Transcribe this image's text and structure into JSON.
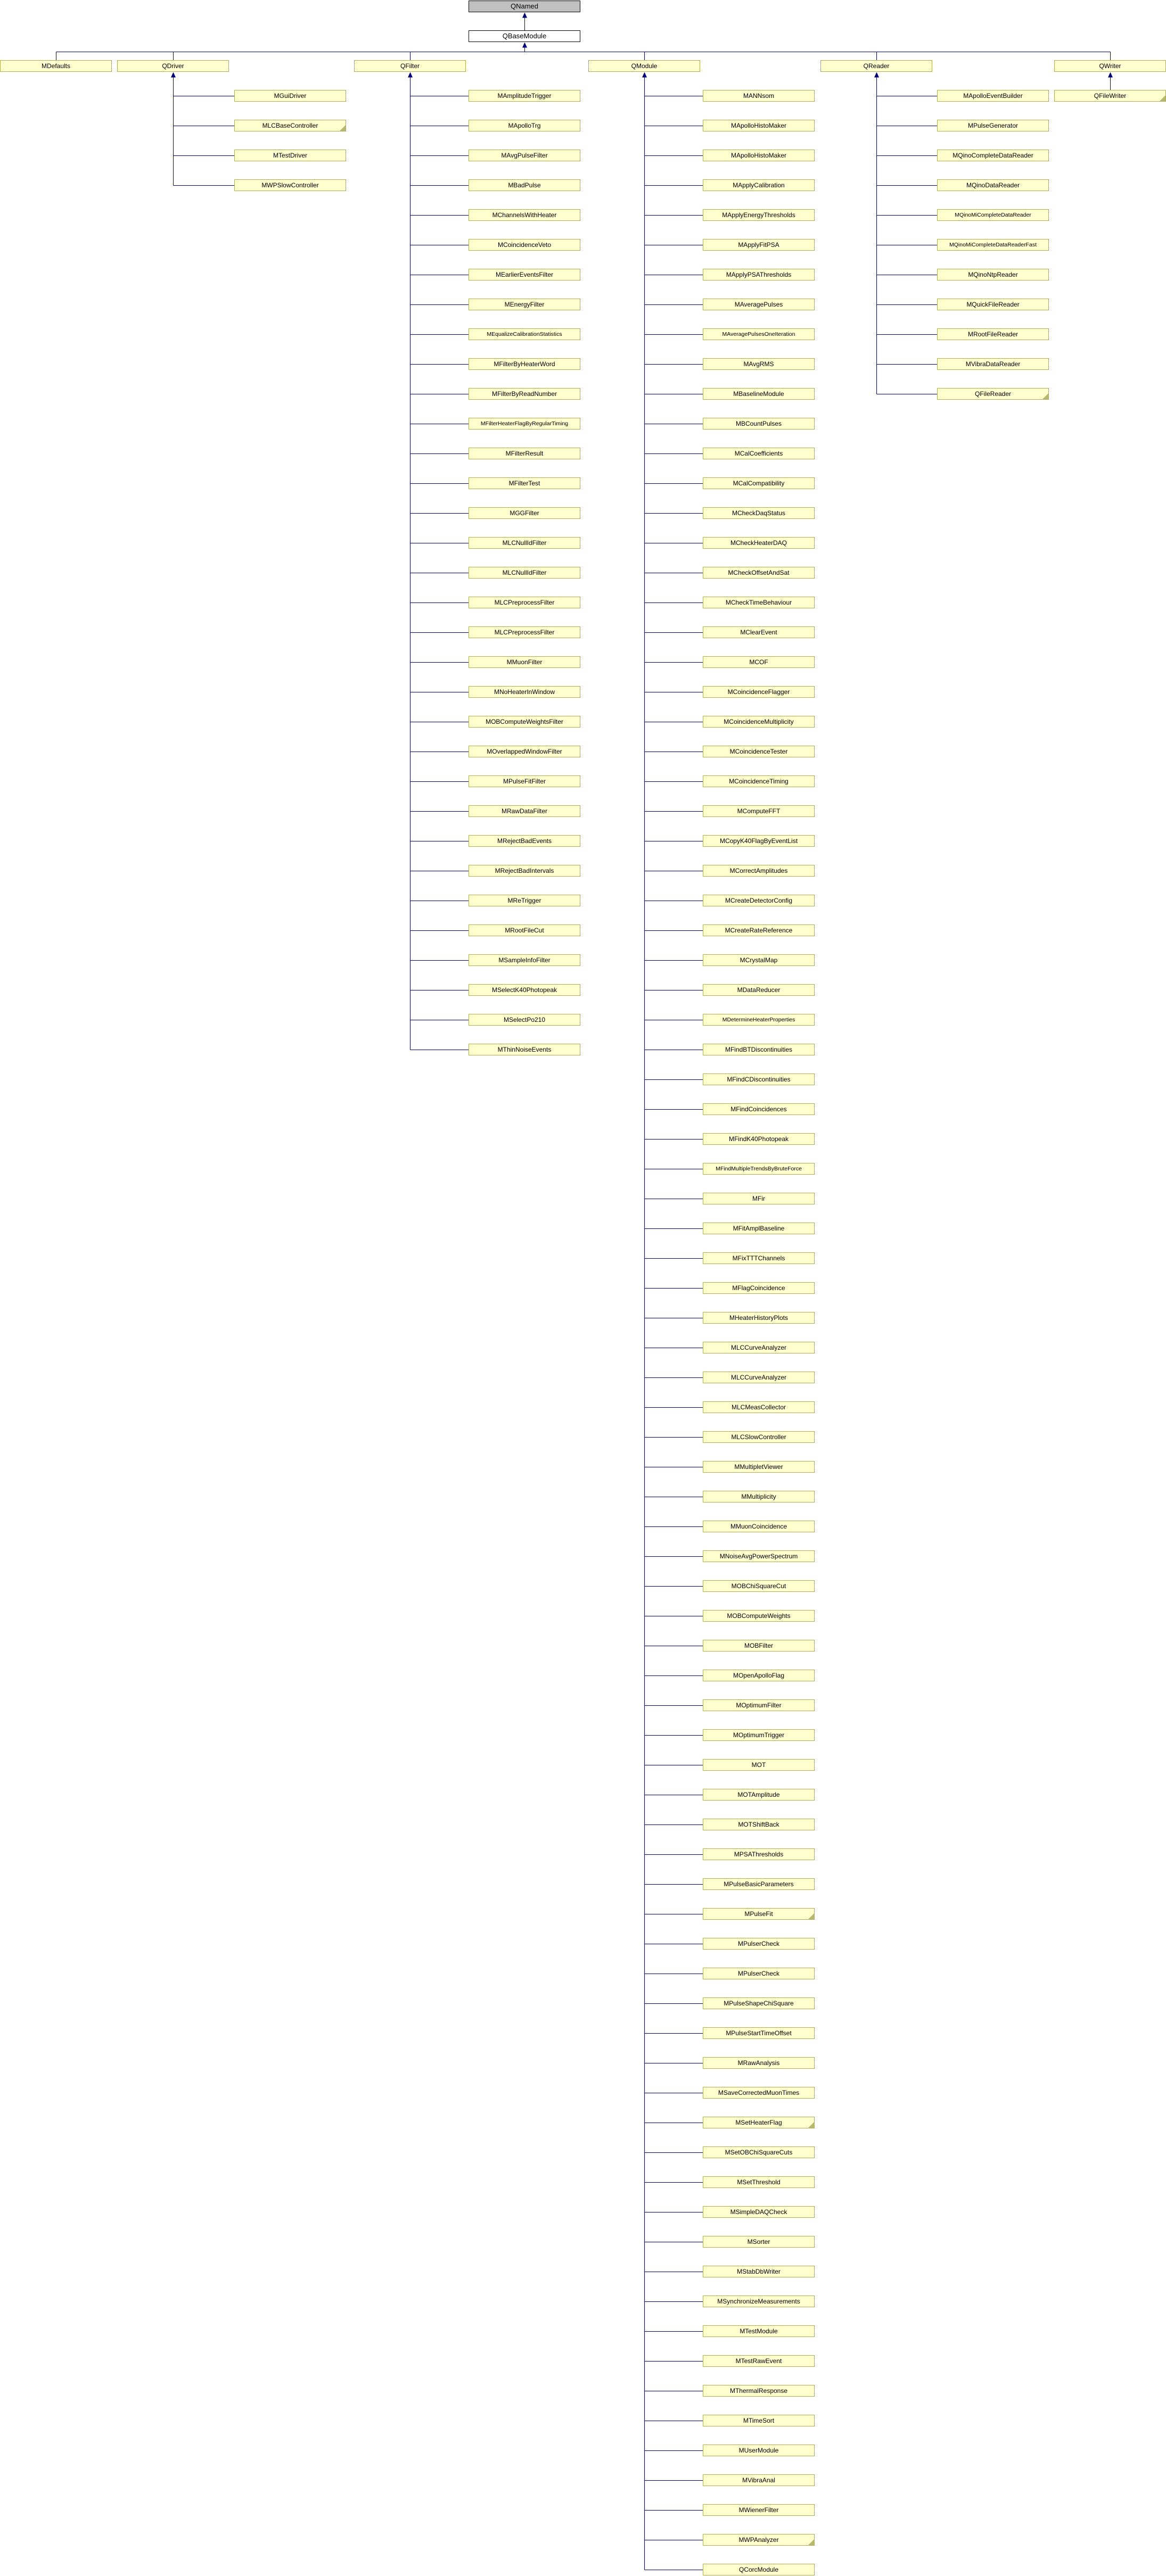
{
  "diagram": {
    "root_label": "QNamed",
    "base_label": "QBaseModule",
    "colors": {
      "background": "#FFFFFF",
      "node_fill": "#FFFFCE",
      "node_border": "#B0B052",
      "fold_corner": "#B9B96E",
      "root_fill": "#C0C0C0",
      "root_border": "#000000",
      "base_fill": "#FFFFFF",
      "edge": "#000080",
      "text": "#000000"
    },
    "columns": [
      {
        "label": "MDefaults",
        "children": []
      },
      {
        "label": "QDriver",
        "children": [
          {
            "label": "MGuiDriver",
            "folded": false
          },
          {
            "label": "MLCBaseController",
            "folded": true
          },
          {
            "label": "MTestDriver",
            "folded": false
          },
          {
            "label": "MWPSlowController",
            "folded": false
          }
        ]
      },
      {
        "label": "QFilter",
        "children": [
          {
            "label": "MAmplitudeTrigger",
            "folded": false
          },
          {
            "label": "MApolloTrg",
            "folded": false
          },
          {
            "label": "MAvgPulseFilter",
            "folded": false
          },
          {
            "label": "MBadPulse",
            "folded": false
          },
          {
            "label": "MChannelsWithHeater",
            "folded": false
          },
          {
            "label": "MCoincidenceVeto",
            "folded": false
          },
          {
            "label": "MEarlierEventsFilter",
            "folded": false
          },
          {
            "label": "MEnergyFilter",
            "folded": false
          },
          {
            "label": "MEqualizeCalibrationStatistics",
            "folded": false
          },
          {
            "label": "MFilterByHeaterWord",
            "folded": false
          },
          {
            "label": "MFilterByReadNumber",
            "folded": false
          },
          {
            "label": "MFilterHeaterFlagByRegularTiming",
            "folded": false
          },
          {
            "label": "MFilterResult",
            "folded": false
          },
          {
            "label": "MFilterTest",
            "folded": false
          },
          {
            "label": "MGGFilter",
            "folded": false
          },
          {
            "label": "MLCNullIdFilter",
            "folded": false
          },
          {
            "label": "MLCNullIdFilter",
            "folded": false
          },
          {
            "label": "MLCPreprocessFilter",
            "folded": false
          },
          {
            "label": "MLCPreprocessFilter",
            "folded": false
          },
          {
            "label": "MMuonFilter",
            "folded": false
          },
          {
            "label": "MNoHeaterInWindow",
            "folded": false
          },
          {
            "label": "MOBComputeWeightsFilter",
            "folded": false
          },
          {
            "label": "MOverlappedWindowFilter",
            "folded": false
          },
          {
            "label": "MPulseFitFilter",
            "folded": false
          },
          {
            "label": "MRawDataFilter",
            "folded": false
          },
          {
            "label": "MRejectBadEvents",
            "folded": false
          },
          {
            "label": "MRejectBadIntervals",
            "folded": false
          },
          {
            "label": "MReTrigger",
            "folded": false
          },
          {
            "label": "MRootFileCut",
            "folded": false
          },
          {
            "label": "MSampleInfoFilter",
            "folded": false
          },
          {
            "label": "MSelectK40Photopeak",
            "folded": false
          },
          {
            "label": "MSelectPo210",
            "folded": false
          },
          {
            "label": "MThinNoiseEvents",
            "folded": false
          }
        ]
      },
      {
        "label": "QModule",
        "children": [
          {
            "label": "MANNsom",
            "folded": false
          },
          {
            "label": "MApolloHistoMaker",
            "folded": false
          },
          {
            "label": "MApolloHistoMaker",
            "folded": false
          },
          {
            "label": "MApplyCalibration",
            "folded": false
          },
          {
            "label": "MApplyEnergyThresholds",
            "folded": false
          },
          {
            "label": "MApplyFitPSA",
            "folded": false
          },
          {
            "label": "MApplyPSAThresholds",
            "folded": false
          },
          {
            "label": "MAveragePulses",
            "folded": false
          },
          {
            "label": "MAveragePulsesOneIteration",
            "folded": false
          },
          {
            "label": "MAvgRMS",
            "folded": false
          },
          {
            "label": "MBaselineModule",
            "folded": false
          },
          {
            "label": "MBCountPulses",
            "folded": false
          },
          {
            "label": "MCalCoefficients",
            "folded": false
          },
          {
            "label": "MCalCompatibility",
            "folded": false
          },
          {
            "label": "MCheckDaqStatus",
            "folded": false
          },
          {
            "label": "MCheckHeaterDAQ",
            "folded": false
          },
          {
            "label": "MCheckOffsetAndSat",
            "folded": false
          },
          {
            "label": "MCheckTimeBehaviour",
            "folded": false
          },
          {
            "label": "MClearEvent",
            "folded": false
          },
          {
            "label": "MCOF",
            "folded": false
          },
          {
            "label": "MCoincidenceFlagger",
            "folded": false
          },
          {
            "label": "MCoincidenceMultiplicity",
            "folded": false
          },
          {
            "label": "MCoincidenceTester",
            "folded": false
          },
          {
            "label": "MCoincidenceTiming",
            "folded": false
          },
          {
            "label": "MComputeFFT",
            "folded": false
          },
          {
            "label": "MCopyK40FlagByEventList",
            "folded": false
          },
          {
            "label": "MCorrectAmplitudes",
            "folded": false
          },
          {
            "label": "MCreateDetectorConfig",
            "folded": false
          },
          {
            "label": "MCreateRateReference",
            "folded": false
          },
          {
            "label": "MCrystalMap",
            "folded": false
          },
          {
            "label": "MDataReducer",
            "folded": false
          },
          {
            "label": "MDetermineHeaterProperties",
            "folded": false
          },
          {
            "label": "MFindBTDiscontinuities",
            "folded": false
          },
          {
            "label": "MFindCDiscontinuities",
            "folded": false
          },
          {
            "label": "MFindCoincidences",
            "folded": false
          },
          {
            "label": "MFindK40Photopeak",
            "folded": false
          },
          {
            "label": "MFindMultipleTrendsByBruteForce",
            "folded": false
          },
          {
            "label": "MFir",
            "folded": false
          },
          {
            "label": "MFitAmplBaseline",
            "folded": false
          },
          {
            "label": "MFixTTTChannels",
            "folded": false
          },
          {
            "label": "MFlagCoincidence",
            "folded": false
          },
          {
            "label": "MHeaterHistoryPlots",
            "folded": false
          },
          {
            "label": "MLCCurveAnalyzer",
            "folded": false
          },
          {
            "label": "MLCCurveAnalyzer",
            "folded": false
          },
          {
            "label": "MLCMeasCollector",
            "folded": false
          },
          {
            "label": "MLCSlowController",
            "folded": false
          },
          {
            "label": "MMultipletViewer",
            "folded": false
          },
          {
            "label": "MMultiplicity",
            "folded": false
          },
          {
            "label": "MMuonCoincidence",
            "folded": false
          },
          {
            "label": "MNoiseAvgPowerSpectrum",
            "folded": false
          },
          {
            "label": "MOBChiSquareCut",
            "folded": false
          },
          {
            "label": "MOBComputeWeights",
            "folded": false
          },
          {
            "label": "MOBFilter",
            "folded": false
          },
          {
            "label": "MOpenApolloFlag",
            "folded": false
          },
          {
            "label": "MOptimumFilter",
            "folded": false
          },
          {
            "label": "MOptimumTrigger",
            "folded": false
          },
          {
            "label": "MOT",
            "folded": false
          },
          {
            "label": "MOTAmplitude",
            "folded": false
          },
          {
            "label": "MOTShiftBack",
            "folded": false
          },
          {
            "label": "MPSAThresholds",
            "folded": false
          },
          {
            "label": "MPulseBasicParameters",
            "folded": false
          },
          {
            "label": "MPulseFit",
            "folded": true
          },
          {
            "label": "MPulserCheck",
            "folded": false
          },
          {
            "label": "MPulserCheck",
            "folded": false
          },
          {
            "label": "MPulseShapeChiSquare",
            "folded": false
          },
          {
            "label": "MPulseStartTimeOffset",
            "folded": false
          },
          {
            "label": "MRawAnalysis",
            "folded": false
          },
          {
            "label": "MSaveCorrectedMuonTimes",
            "folded": false
          },
          {
            "label": "MSetHeaterFlag",
            "folded": true
          },
          {
            "label": "MSetOBChiSquareCuts",
            "folded": false
          },
          {
            "label": "MSetThreshold",
            "folded": false
          },
          {
            "label": "MSimpleDAQCheck",
            "folded": false
          },
          {
            "label": "MSorter",
            "folded": false
          },
          {
            "label": "MStabDbWriter",
            "folded": false
          },
          {
            "label": "MSynchronizeMeasurements",
            "folded": false
          },
          {
            "label": "MTestModule",
            "folded": false
          },
          {
            "label": "MTestRawEvent",
            "folded": false
          },
          {
            "label": "MThermalResponse",
            "folded": false
          },
          {
            "label": "MTimeSort",
            "folded": false
          },
          {
            "label": "MUserModule",
            "folded": false
          },
          {
            "label": "MVibraAnal",
            "folded": false
          },
          {
            "label": "MWienerFilter",
            "folded": false
          },
          {
            "label": "MWPAnalyzer",
            "folded": true
          },
          {
            "label": "QCorcModule",
            "folded": false
          }
        ]
      },
      {
        "label": "QReader",
        "children": [
          {
            "label": "MApolloEventBuilder",
            "folded": false
          },
          {
            "label": "MPulseGenerator",
            "folded": false
          },
          {
            "label": "MQinoCompleteDataReader",
            "folded": false
          },
          {
            "label": "MQinoDataReader",
            "folded": false
          },
          {
            "label": "MQinoMiCompleteDataReader",
            "folded": false
          },
          {
            "label": "MQinoMiCompleteDataReaderFast",
            "folded": false
          },
          {
            "label": "MQinoNtpReader",
            "folded": false
          },
          {
            "label": "MQuickFileReader",
            "folded": false
          },
          {
            "label": "MRootFileReader",
            "folded": false
          },
          {
            "label": "MVibraDataReader",
            "folded": false
          },
          {
            "label": "QFileReader",
            "folded": true
          }
        ]
      },
      {
        "label": "QWriter",
        "children": [
          {
            "label": "QFileWriter",
            "folded": true
          }
        ]
      }
    ]
  }
}
